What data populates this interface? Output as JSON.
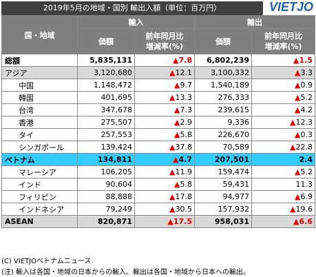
{
  "header": {
    "title": "2019年5月の地域・国別 輸出入額（単位：百万円）",
    "logo": "VIETJO"
  },
  "table": {
    "region_header": "国・地域",
    "import_header": "輸入",
    "export_header": "輸出",
    "value_header": "価額",
    "change_header_1": "前年同月比",
    "change_header_2": "増減率(%)",
    "rows": [
      [
        "総額",
        "5,835,131",
        "▲7.8",
        "6,802,239",
        "▲1.5"
      ],
      [
        "アジア",
        "3,120,680",
        "▲12.1",
        "3,100,332",
        "▲3.3"
      ],
      [
        "中国",
        "1,148,472",
        "▲9.7",
        "1,540,189",
        "▲0.9"
      ],
      [
        "韓国",
        "401,695",
        "▲13.3",
        "276,333",
        "▲5.2"
      ],
      [
        "台湾",
        "347,678",
        "▲7.3",
        "239,615",
        "▲4.2"
      ],
      [
        "香港",
        "275,507",
        "▲2.9",
        "9,336",
        "▲12.3"
      ],
      [
        "タイ",
        "257,553",
        "▲5.8",
        "226,670",
        "▲0.3"
      ],
      [
        "シンガポール",
        "139,424",
        "▲37.8",
        "70,589",
        "▲22.8"
      ],
      [
        "ベトナム",
        "134,811",
        "▲4.7",
        "207,501",
        "2.4"
      ],
      [
        "マレーシア",
        "106,205",
        "▲11.9",
        "159,474",
        "▲5.2"
      ],
      [
        "インド",
        "90,604",
        "▲5.8",
        "59,431",
        "11.3"
      ],
      [
        "フィリピン",
        "88,888",
        "▲17.8",
        "94,977",
        "▲6.9"
      ],
      [
        "インドネシア",
        "79,249",
        "▲30.5",
        "157,932",
        "▲19.6"
      ],
      [
        "ASEAN",
        "820,871",
        "▲17.5",
        "958,031",
        "▲6.6"
      ]
    ]
  },
  "footer": {
    "copyright": "(C) VIETJOベトナムニュース",
    "note": "(注) 輸入は各国・地域の日本からの輸入、輸出は各国・地域から日本への輸出。"
  }
}
